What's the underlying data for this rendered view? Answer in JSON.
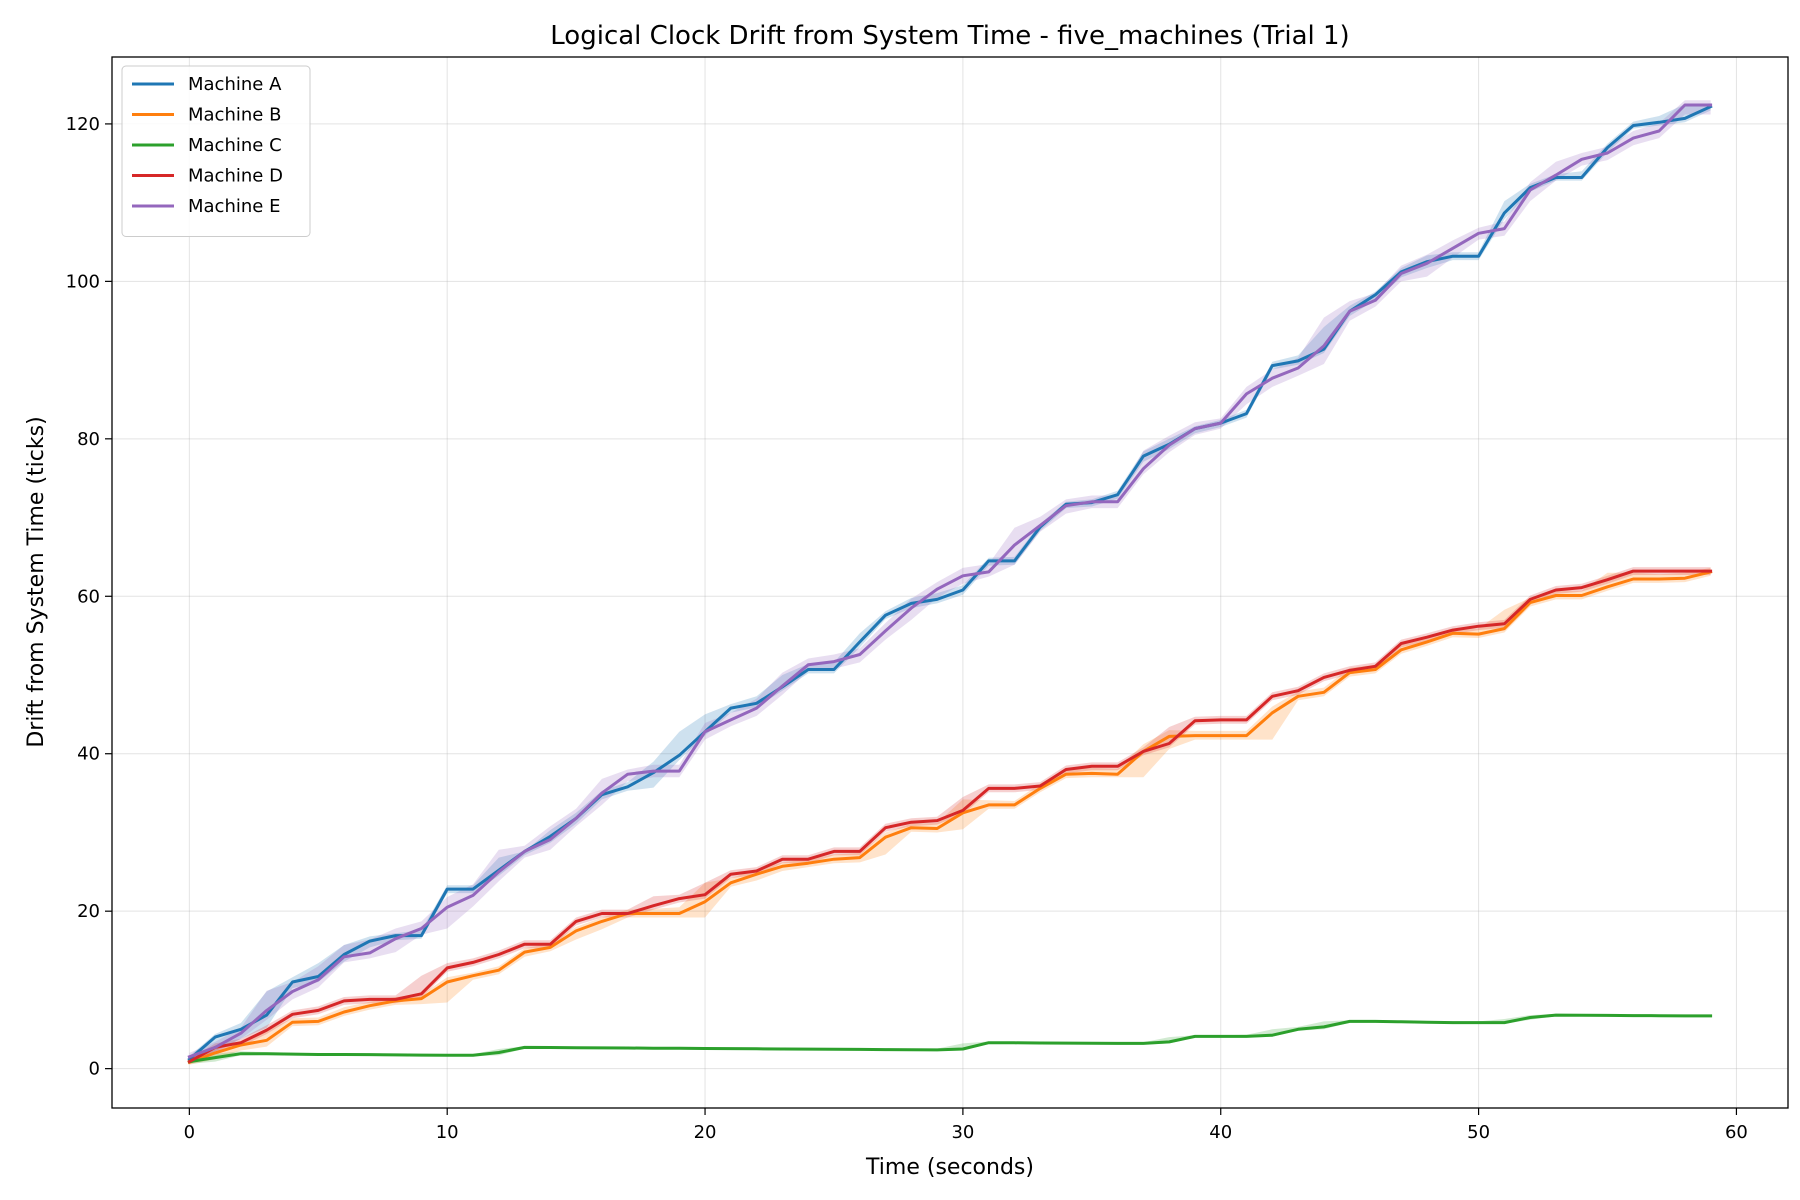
{
  "chart_data": {
    "type": "line",
    "title": "Logical Clock Drift from System Time - five_machines (Trial 1)",
    "xlabel": "Time (seconds)",
    "ylabel": "Drift from System Time (ticks)",
    "xlim": [
      -3,
      62
    ],
    "ylim": [
      -5,
      128.5
    ],
    "xticks": [
      0,
      10,
      20,
      30,
      40,
      50,
      60
    ],
    "yticks": [
      0,
      20,
      40,
      60,
      80,
      100,
      120
    ],
    "grid": true,
    "legend_position": "upper left",
    "band_opacity": 0.22,
    "x": [
      0,
      1,
      2,
      3,
      4,
      5,
      6,
      7,
      8,
      9,
      10,
      11,
      12,
      13,
      14,
      15,
      16,
      17,
      18,
      19,
      20,
      21,
      22,
      23,
      24,
      25,
      26,
      27,
      28,
      29,
      30,
      31,
      32,
      33,
      34,
      35,
      36,
      37,
      38,
      39,
      40,
      41,
      42,
      43,
      44,
      45,
      46,
      47,
      48,
      49,
      50,
      51,
      52,
      53,
      54,
      55,
      56,
      57,
      58,
      59
    ],
    "series": [
      {
        "name": "Machine A",
        "color": "#1f77b4",
        "values": [
          1.2,
          4,
          5,
          6.8,
          11,
          11.7,
          14.5,
          16.2,
          16.9,
          16.9,
          22.8,
          22.8,
          25.2,
          27.6,
          29.5,
          31.8,
          34.8,
          35.8,
          37.6,
          39.8,
          42.8,
          45.8,
          46.4,
          48.5,
          50.7,
          50.7,
          54.2,
          57.6,
          59.1,
          59.6,
          60.8,
          64.5,
          64.5,
          68.8,
          71.7,
          71.9,
          72.9,
          77.8,
          79.3,
          81.3,
          82,
          83.2,
          89.3,
          89.9,
          91.4,
          96.2,
          98.3,
          101.2,
          102.5,
          103.2,
          103.2,
          108.7,
          111.9,
          113.2,
          113.2,
          117,
          119.8,
          120.2,
          120.7,
          122.2
        ],
        "upper": [
          1.6,
          4.4,
          5.8,
          9.8,
          11.6,
          13.4,
          15.7,
          16.8,
          17.2,
          17.6,
          23.3,
          23.3,
          26.8,
          27.6,
          30.3,
          32.5,
          35.3,
          36.4,
          39,
          42.8,
          45,
          46.3,
          47.3,
          50,
          51.4,
          51.6,
          55.3,
          58.1,
          59.8,
          60.4,
          61.4,
          64.9,
          65,
          69.2,
          72,
          72.3,
          73.4,
          78.4,
          80,
          81.6,
          82.4,
          83.7,
          89.8,
          90.6,
          94.2,
          96.9,
          98.7,
          101.7,
          103.3,
          103.7,
          103.7,
          110.2,
          112.4,
          113.6,
          114,
          117.5,
          120.3,
          121,
          122.5,
          122.6
        ],
        "lower": [
          0.9,
          2.2,
          3.8,
          5.2,
          10.2,
          11,
          13.6,
          15.4,
          16.3,
          16.5,
          22.3,
          22.3,
          24.5,
          27.1,
          28.7,
          31.1,
          34.2,
          35.3,
          35.7,
          39.2,
          42.3,
          45.2,
          45.9,
          48,
          50.2,
          50.2,
          53.5,
          57.1,
          58.5,
          59.1,
          60.2,
          63.9,
          64,
          68.3,
          71.2,
          71.4,
          72.4,
          77.1,
          78.7,
          80.7,
          81.5,
          82.7,
          88.8,
          89.4,
          90.9,
          95.6,
          97.6,
          100.5,
          101.7,
          102.7,
          102.7,
          107.9,
          111.4,
          112.8,
          112.8,
          116.4,
          119.4,
          119.8,
          120.2,
          121.7
        ]
      },
      {
        "name": "Machine B",
        "color": "#ff7f0e",
        "values": [
          0.8,
          2,
          3,
          3.6,
          5.9,
          6,
          7.2,
          8,
          8.6,
          8.9,
          11,
          11.8,
          12.5,
          14.8,
          15.4,
          17.5,
          18.7,
          19.7,
          19.7,
          19.7,
          21.2,
          23.6,
          24.7,
          25.7,
          26.1,
          26.6,
          26.8,
          29.4,
          30.6,
          30.5,
          32.5,
          33.5,
          33.5,
          35.6,
          37.4,
          37.5,
          37.4,
          40.3,
          42.2,
          42.3,
          42.3,
          42.3,
          45.2,
          47.3,
          47.8,
          50.3,
          50.7,
          53.2,
          54.2,
          55.3,
          55.2,
          55.9,
          59.2,
          60.1,
          60.1,
          61.2,
          62.2,
          62.2,
          62.3,
          63.1
        ],
        "upper": [
          1.1,
          2.8,
          3.4,
          4.8,
          6.4,
          6.5,
          7.8,
          8.5,
          9.1,
          9.4,
          11.6,
          12.2,
          13,
          15.3,
          15.9,
          18,
          19.2,
          20.2,
          20.3,
          20.5,
          23.6,
          24.2,
          25.3,
          26.2,
          26.6,
          27.2,
          27.4,
          30,
          31.1,
          31.2,
          34.2,
          34.1,
          34,
          36.2,
          38,
          38.2,
          38.1,
          41.2,
          43,
          42.9,
          42.9,
          42.9,
          46,
          47.9,
          48.4,
          50.9,
          51.3,
          53.8,
          54.8,
          55.9,
          55.9,
          58.3,
          59.8,
          60.7,
          60.7,
          63,
          63,
          62.8,
          63,
          63.6
        ],
        "lower": [
          0.5,
          1.2,
          2.3,
          2.8,
          5.4,
          5.5,
          6.7,
          7.5,
          8.1,
          8.2,
          8.4,
          11.3,
          12,
          14.2,
          14.9,
          16.4,
          17.7,
          19.2,
          19.2,
          19.2,
          19.2,
          23.1,
          23.9,
          25.1,
          25.6,
          26.1,
          26.2,
          27.2,
          30.1,
          30,
          30.4,
          33,
          33,
          35.1,
          36.9,
          37,
          37,
          37,
          40.6,
          41.8,
          41.8,
          41.8,
          41.8,
          46.8,
          47.3,
          49.8,
          50.2,
          52.7,
          53.7,
          54.8,
          54.7,
          55.4,
          58.7,
          59.6,
          59.6,
          60.7,
          61.7,
          61.7,
          61.8,
          62.6
        ]
      },
      {
        "name": "Machine C",
        "color": "#2ca02c",
        "values": [
          0.9,
          1.4,
          1.9,
          1.9,
          1.85,
          1.8,
          1.8,
          1.78,
          1.75,
          1.72,
          1.7,
          1.7,
          2.05,
          2.7,
          2.68,
          2.66,
          2.64,
          2.62,
          2.6,
          2.58,
          2.56,
          2.54,
          2.52,
          2.5,
          2.48,
          2.46,
          2.44,
          2.42,
          2.4,
          2.38,
          2.5,
          3.3,
          3.28,
          3.26,
          3.24,
          3.22,
          3.2,
          3.2,
          3.4,
          4.1,
          4.1,
          4.1,
          4.25,
          5,
          5.3,
          6,
          6,
          5.95,
          5.9,
          5.85,
          5.85,
          5.85,
          6.5,
          6.8,
          6.78,
          6.76,
          6.74,
          6.72,
          6.7,
          6.7
        ],
        "upper": [
          1.2,
          1.9,
          2.2,
          2.1,
          2,
          1.95,
          1.95,
          1.93,
          1.9,
          1.87,
          1.85,
          1.85,
          2.5,
          2.85,
          2.83,
          2.81,
          2.79,
          2.77,
          2.75,
          2.73,
          2.71,
          2.69,
          2.67,
          2.65,
          2.63,
          2.61,
          2.59,
          2.57,
          2.55,
          2.55,
          3.2,
          3.45,
          3.43,
          3.41,
          3.39,
          3.37,
          3.35,
          3.35,
          4,
          4.25,
          4.25,
          4.3,
          5,
          5.3,
          6,
          6.15,
          6.15,
          6.1,
          6.05,
          6,
          6,
          6.3,
          6.8,
          6.95,
          6.93,
          6.91,
          6.89,
          6.87,
          6.85,
          6.85
        ],
        "lower": [
          0.6,
          0.9,
          1.7,
          1.75,
          1.7,
          1.65,
          1.65,
          1.63,
          1.6,
          1.57,
          1.55,
          1.55,
          1.7,
          2.55,
          2.53,
          2.51,
          2.49,
          2.47,
          2.45,
          2.43,
          2.41,
          2.39,
          2.37,
          2.35,
          2.33,
          2.31,
          2.29,
          2.27,
          2.25,
          2.23,
          2.3,
          3.15,
          3.13,
          3.11,
          3.09,
          3.07,
          3.05,
          3.05,
          3.2,
          3.95,
          3.95,
          3.95,
          4.05,
          4.8,
          5,
          5.85,
          5.85,
          5.8,
          5.75,
          5.7,
          5.7,
          5.7,
          6.2,
          6.65,
          6.63,
          6.61,
          6.59,
          6.57,
          6.55,
          6.55
        ]
      },
      {
        "name": "Machine D",
        "color": "#d62728",
        "values": [
          0.9,
          2.7,
          3.3,
          4.9,
          6.9,
          7.4,
          8.6,
          8.8,
          8.8,
          9.5,
          12.8,
          13.5,
          14.5,
          15.8,
          15.8,
          18.7,
          19.7,
          19.7,
          20.7,
          21.6,
          22.1,
          24.7,
          25.1,
          26.6,
          26.6,
          27.6,
          27.6,
          30.6,
          31.3,
          31.5,
          32.8,
          35.6,
          35.6,
          35.9,
          38,
          38.4,
          38.4,
          40.3,
          41.3,
          44.2,
          44.3,
          44.3,
          47.3,
          48,
          49.7,
          50.6,
          51.1,
          54,
          54.8,
          55.7,
          56.2,
          56.5,
          59.6,
          60.8,
          61.1,
          62.1,
          63.2,
          63.2,
          63.2,
          63.2
        ],
        "upper": [
          1.2,
          3.2,
          3.8,
          5.5,
          7.4,
          7.9,
          9.1,
          9.3,
          9.3,
          11.8,
          13.4,
          14,
          15,
          16.3,
          16.3,
          19.2,
          20.2,
          20.2,
          21.9,
          22.1,
          23.6,
          25.2,
          25.6,
          27.1,
          27.1,
          28.1,
          28.1,
          31.1,
          31.8,
          32,
          34.5,
          36.1,
          36.1,
          36.4,
          38.5,
          38.9,
          38.9,
          40.8,
          43.4,
          44.7,
          44.8,
          44.8,
          47.8,
          48.5,
          50.2,
          51.1,
          51.6,
          54.5,
          55.3,
          56.2,
          56.7,
          57,
          60.1,
          61.3,
          61.6,
          62.6,
          63.7,
          63.7,
          63.7,
          63.7
        ],
        "lower": [
          0.6,
          2.2,
          2.8,
          4.4,
          6.4,
          6.9,
          8.1,
          8.3,
          8.3,
          9,
          12.3,
          13,
          14,
          15.3,
          15.3,
          18.2,
          19.2,
          19.2,
          20.2,
          21.1,
          21.6,
          24.2,
          24.6,
          26.1,
          26.1,
          27.1,
          27.1,
          30.1,
          30.8,
          31,
          32.3,
          35.1,
          35.1,
          35.4,
          37.5,
          37.9,
          37.9,
          39.8,
          40.8,
          43.7,
          43.8,
          43.8,
          46.8,
          47.5,
          49.2,
          50.1,
          50.6,
          53.5,
          54.3,
          55.2,
          55.7,
          56,
          59.1,
          60.3,
          60.6,
          61.6,
          62.7,
          62.7,
          62.7,
          62.7
        ]
      },
      {
        "name": "Machine E",
        "color": "#9467bd",
        "values": [
          1.5,
          2.7,
          4.5,
          7.4,
          9.8,
          11.3,
          14.2,
          14.7,
          16.5,
          17.8,
          20.5,
          22,
          25,
          27.6,
          29.1,
          31.8,
          35,
          37.4,
          37.8,
          37.8,
          42.8,
          44.3,
          45.8,
          48.6,
          51.3,
          51.7,
          52.6,
          55.6,
          58.5,
          60.9,
          62.6,
          63.1,
          66.5,
          69,
          71.5,
          72,
          72,
          76.2,
          79.2,
          81.3,
          82,
          85.7,
          87.7,
          89,
          91.8,
          96.2,
          97.6,
          101,
          102.3,
          104.2,
          106.1,
          106.7,
          111.6,
          113.5,
          115.5,
          116.3,
          118.2,
          119.1,
          122.4,
          122.4
        ],
        "upper": [
          2,
          3.4,
          5.2,
          9.9,
          11,
          13,
          15.7,
          16.4,
          17.8,
          18.7,
          21.8,
          23.4,
          27.8,
          28.3,
          30.8,
          33,
          36.8,
          38,
          38.6,
          38.6,
          43.9,
          45.2,
          47,
          50.3,
          52.1,
          52.6,
          53.4,
          56.6,
          59.7,
          61.8,
          63.6,
          64.1,
          68.7,
          70.1,
          72.3,
          72.8,
          72.8,
          78.5,
          80.4,
          82.1,
          82.6,
          86.6,
          88.8,
          90.3,
          95.4,
          97.5,
          98.5,
          102,
          103.4,
          105.2,
          106.8,
          107.6,
          112.6,
          115.2,
          116.3,
          117.1,
          119.1,
          120.1,
          123,
          123
        ],
        "lower": [
          1,
          2,
          3.8,
          6.2,
          8.8,
          10.3,
          13.5,
          14,
          14.8,
          17,
          17.8,
          20.6,
          23.8,
          26.8,
          27.8,
          30.8,
          33.5,
          36.5,
          37,
          37,
          41.8,
          43.5,
          44.8,
          47.5,
          50.5,
          50.8,
          51.6,
          54.5,
          57,
          59.8,
          61.6,
          62.5,
          64,
          68.2,
          70.5,
          71.2,
          71.2,
          75.5,
          78.3,
          80.5,
          81.3,
          84.4,
          86.6,
          88,
          89.5,
          95,
          96.8,
          100,
          100.6,
          103,
          105.3,
          105.8,
          110.2,
          112.8,
          114.7,
          115.4,
          117.3,
          118.2,
          121.2,
          121.2
        ]
      }
    ]
  }
}
